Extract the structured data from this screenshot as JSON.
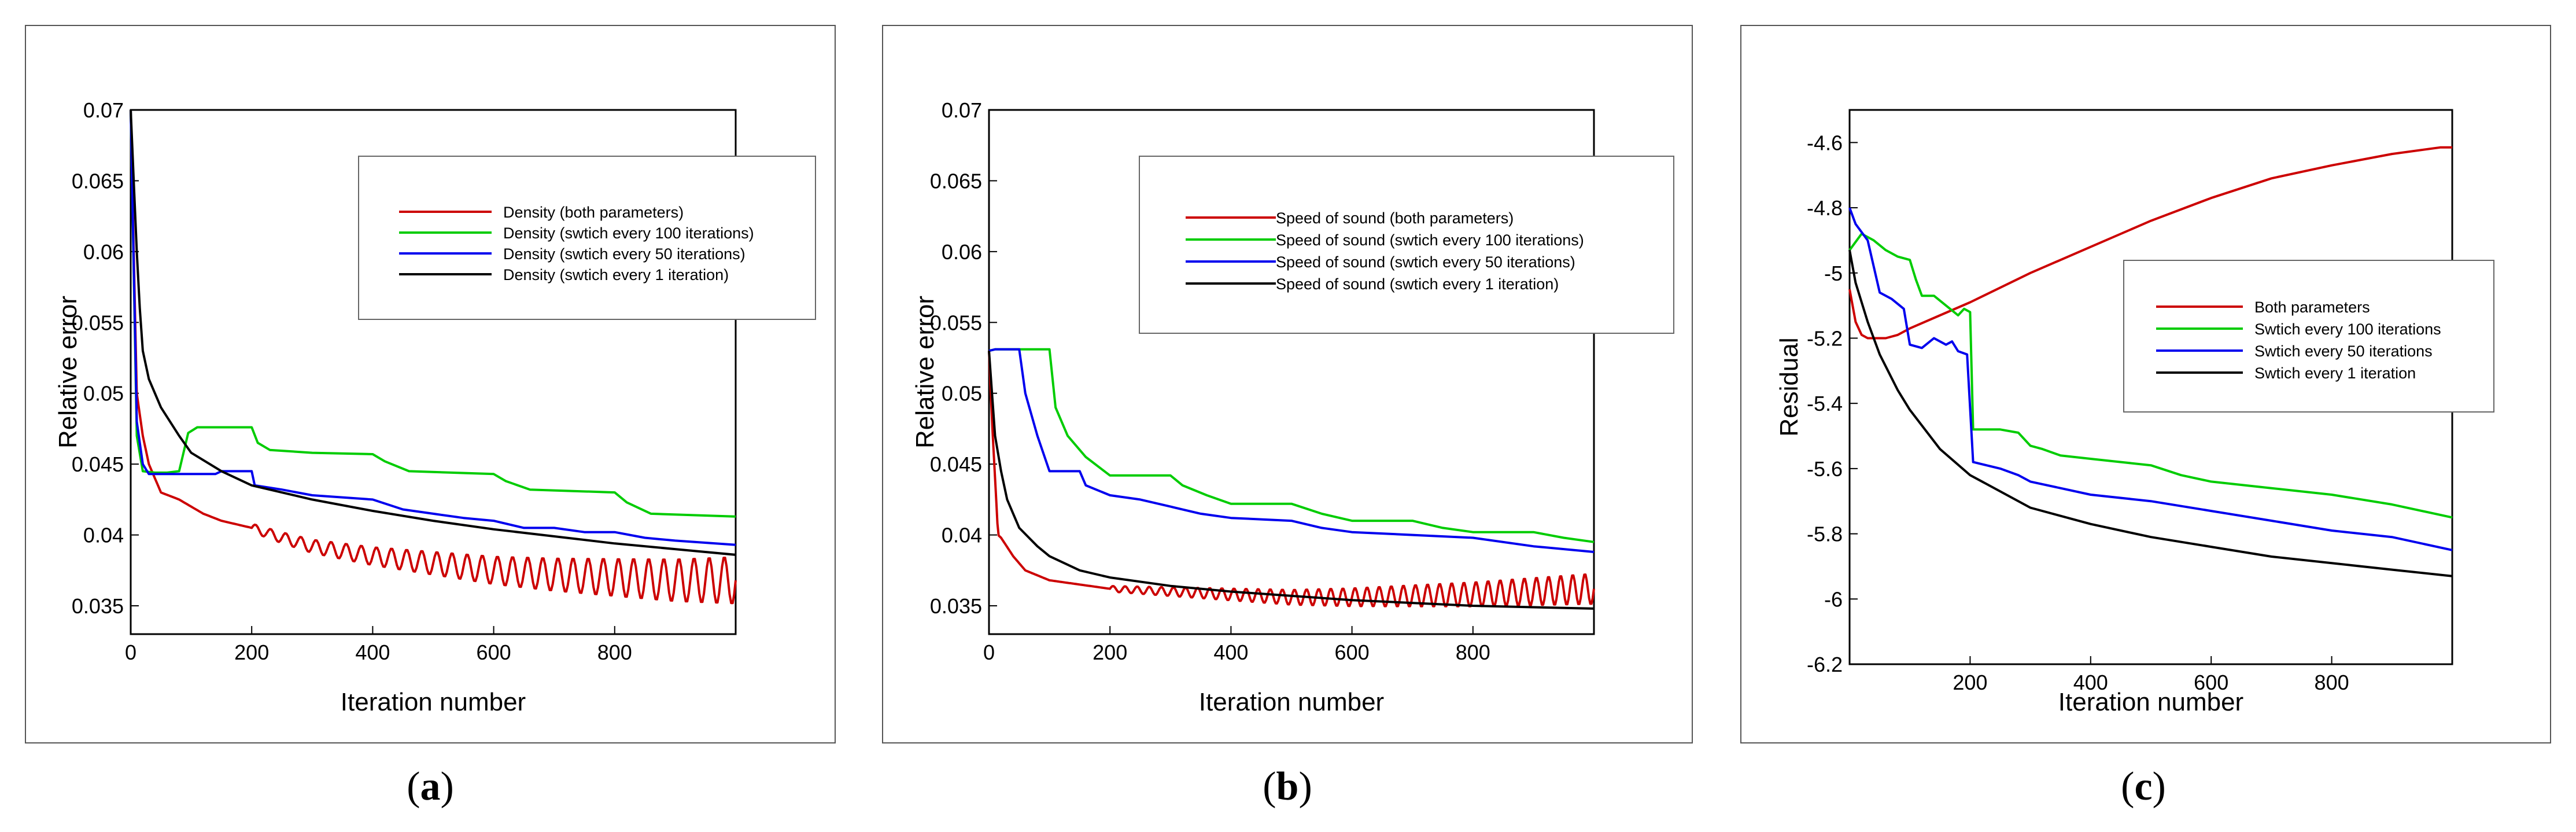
{
  "colors": {
    "red": "#cc0000",
    "green": "#00cc00",
    "blue": "#0000ee",
    "black": "#000000"
  },
  "chart_data": [
    {
      "type": "line",
      "caption": "(a)",
      "caption_letter": "a",
      "xlabel": "Iteration number",
      "ylabel": "Relative error",
      "xlim": [
        0,
        1000
      ],
      "ylim": [
        0.033,
        0.07
      ],
      "xticks": [
        0,
        200,
        400,
        600,
        800
      ],
      "xtick_labels": [
        "0",
        "200",
        "400",
        "600",
        "800"
      ],
      "yticks": [
        0.035,
        0.04,
        0.045,
        0.05,
        0.055,
        0.06,
        0.065,
        0.07
      ],
      "ytick_labels": [
        "0.035",
        "0.04",
        "0.045",
        "0.05",
        "0.055",
        "0.06",
        "0.065",
        "0.07"
      ],
      "legend_position": "top-right",
      "series": [
        {
          "name": "Density (both parameters)",
          "color": "red",
          "x": [
            0,
            5,
            10,
            20,
            30,
            50,
            80,
            120,
            150,
            200,
            250,
            300,
            400,
            500,
            600,
            700,
            800,
            900,
            1000
          ],
          "y": [
            0.07,
            0.06,
            0.05,
            0.047,
            0.045,
            0.043,
            0.0425,
            0.0415,
            0.041,
            0.0405,
            0.0398,
            0.0392,
            0.0385,
            0.038,
            0.0375,
            0.0372,
            0.037,
            0.0368,
            0.0368
          ],
          "oscillation": {
            "start": 200,
            "period": 25,
            "amp_start": 0.0003,
            "amp_end": 0.0017
          }
        },
        {
          "name": "Density (swtich every 100 iterations)",
          "color": "green",
          "x": [
            0,
            10,
            20,
            40,
            60,
            80,
            95,
            110,
            130,
            200,
            210,
            230,
            300,
            400,
            420,
            460,
            600,
            620,
            660,
            800,
            820,
            860,
            1000
          ],
          "y": [
            0.07,
            0.047,
            0.0445,
            0.0444,
            0.0444,
            0.0445,
            0.0472,
            0.0476,
            0.0476,
            0.0476,
            0.0465,
            0.046,
            0.0458,
            0.0457,
            0.0452,
            0.0445,
            0.0443,
            0.0438,
            0.0432,
            0.043,
            0.0423,
            0.0415,
            0.0413
          ]
        },
        {
          "name": "Density (swtich every 50 iterations)",
          "color": "blue",
          "x": [
            0,
            10,
            20,
            30,
            50,
            100,
            140,
            150,
            200,
            205,
            250,
            300,
            400,
            450,
            500,
            550,
            600,
            650,
            700,
            750,
            800,
            850,
            900,
            1000
          ],
          "y": [
            0.07,
            0.048,
            0.045,
            0.0443,
            0.0443,
            0.0443,
            0.0443,
            0.0445,
            0.0445,
            0.0435,
            0.0432,
            0.0428,
            0.0425,
            0.0418,
            0.0415,
            0.0412,
            0.041,
            0.0405,
            0.0405,
            0.0402,
            0.0402,
            0.0398,
            0.0396,
            0.0393
          ]
        },
        {
          "name": "Density (swtich every 1 iteration)",
          "color": "black",
          "x": [
            0,
            5,
            10,
            15,
            20,
            30,
            50,
            80,
            100,
            150,
            200,
            300,
            400,
            500,
            600,
            700,
            800,
            900,
            1000
          ],
          "y": [
            0.07,
            0.065,
            0.06,
            0.056,
            0.053,
            0.051,
            0.049,
            0.047,
            0.0458,
            0.0445,
            0.0435,
            0.0425,
            0.0417,
            0.041,
            0.0404,
            0.0399,
            0.0394,
            0.039,
            0.0386
          ]
        }
      ]
    },
    {
      "type": "line",
      "caption": "(b)",
      "caption_letter": "b",
      "xlabel": "Iteration number",
      "ylabel": "Relative error",
      "xlim": [
        0,
        1000
      ],
      "ylim": [
        0.033,
        0.07
      ],
      "xticks": [
        0,
        200,
        400,
        600,
        800
      ],
      "xtick_labels": [
        "0",
        "200",
        "400",
        "600",
        "800"
      ],
      "yticks": [
        0.035,
        0.04,
        0.045,
        0.05,
        0.055,
        0.06,
        0.065,
        0.07
      ],
      "ytick_labels": [
        "0.035",
        "0.04",
        "0.045",
        "0.05",
        "0.055",
        "0.06",
        "0.065",
        "0.07"
      ],
      "legend_position": "top-right",
      "series": [
        {
          "name": "Speed of sound (both parameters)",
          "color": "red",
          "x": [
            0,
            5,
            10,
            15,
            20,
            40,
            60,
            100,
            150,
            200,
            300,
            400,
            500,
            600,
            700,
            800,
            900,
            1000
          ],
          "y": [
            0.053,
            0.048,
            0.044,
            0.04,
            0.0398,
            0.0385,
            0.0375,
            0.0368,
            0.0365,
            0.0362,
            0.036,
            0.0358,
            0.0356,
            0.0356,
            0.0357,
            0.0358,
            0.036,
            0.0362
          ],
          "oscillation": {
            "start": 200,
            "period": 20,
            "amp_start": 0.0002,
            "amp_end": 0.0011
          }
        },
        {
          "name": "Speed of sound (swtich every 100 iterations)",
          "color": "green",
          "x": [
            0,
            10,
            100,
            110,
            130,
            160,
            200,
            300,
            320,
            360,
            400,
            500,
            550,
            600,
            700,
            750,
            800,
            900,
            950,
            1000
          ],
          "y": [
            0.053,
            0.0531,
            0.0531,
            0.049,
            0.047,
            0.0455,
            0.0442,
            0.0442,
            0.0435,
            0.0428,
            0.0422,
            0.0422,
            0.0415,
            0.041,
            0.041,
            0.0405,
            0.0402,
            0.0402,
            0.0398,
            0.0395
          ]
        },
        {
          "name": "Speed of sound (swtich every 50 iterations)",
          "color": "blue",
          "x": [
            0,
            10,
            50,
            60,
            80,
            100,
            150,
            160,
            200,
            250,
            300,
            350,
            400,
            500,
            550,
            600,
            700,
            800,
            900,
            1000
          ],
          "y": [
            0.053,
            0.0531,
            0.0531,
            0.05,
            0.047,
            0.0445,
            0.0445,
            0.0435,
            0.0428,
            0.0425,
            0.042,
            0.0415,
            0.0412,
            0.041,
            0.0405,
            0.0402,
            0.04,
            0.0398,
            0.0392,
            0.0388
          ]
        },
        {
          "name": "Speed of sound (swtich every 1 iteration)",
          "color": "black",
          "x": [
            0,
            5,
            10,
            20,
            30,
            50,
            80,
            100,
            150,
            200,
            300,
            400,
            500,
            600,
            700,
            800,
            900,
            1000
          ],
          "y": [
            0.053,
            0.05,
            0.047,
            0.0445,
            0.0425,
            0.0405,
            0.0392,
            0.0385,
            0.0375,
            0.037,
            0.0364,
            0.036,
            0.0357,
            0.0354,
            0.0352,
            0.035,
            0.0349,
            0.0348
          ]
        }
      ]
    },
    {
      "type": "line",
      "caption": "(c)",
      "caption_letter": "c",
      "xlabel": "Iteration number",
      "ylabel": "Residual",
      "xlim": [
        0,
        1000
      ],
      "ylim": [
        -6.2,
        -4.5
      ],
      "xticks": [
        200,
        400,
        600,
        800
      ],
      "xtick_labels": [
        "200",
        "400",
        "600",
        "800"
      ],
      "yticks": [
        -6.2,
        -6.0,
        -5.8,
        -5.6,
        -5.4,
        -5.2,
        -5.0,
        -4.8,
        -4.6
      ],
      "ytick_labels": [
        "-6.2",
        "-6",
        "-5.8",
        "-5.6",
        "-5.4",
        "-5.2",
        "-5",
        "-4.8",
        "-4.6"
      ],
      "legend_position": "center-right",
      "series": [
        {
          "name": "Both parameters",
          "color": "red",
          "x": [
            0,
            10,
            20,
            30,
            50,
            60,
            80,
            100,
            150,
            200,
            300,
            400,
            500,
            600,
            700,
            800,
            900,
            980,
            1000
          ],
          "y": [
            -5.05,
            -5.15,
            -5.19,
            -5.2,
            -5.2,
            -5.2,
            -5.19,
            -5.17,
            -5.13,
            -5.09,
            -5.0,
            -4.92,
            -4.84,
            -4.77,
            -4.71,
            -4.67,
            -4.635,
            -4.615,
            -4.615
          ]
        },
        {
          "name": "Swtich every 100 iterations",
          "color": "green",
          "x": [
            0,
            20,
            40,
            60,
            80,
            100,
            110,
            120,
            140,
            160,
            180,
            190,
            200,
            205,
            250,
            280,
            300,
            320,
            350,
            400,
            450,
            500,
            550,
            600,
            700,
            800,
            900,
            1000
          ],
          "y": [
            -4.93,
            -4.88,
            -4.9,
            -4.93,
            -4.95,
            -4.96,
            -5.02,
            -5.07,
            -5.07,
            -5.1,
            -5.13,
            -5.11,
            -5.12,
            -5.48,
            -5.48,
            -5.49,
            -5.53,
            -5.54,
            -5.56,
            -5.57,
            -5.58,
            -5.59,
            -5.62,
            -5.64,
            -5.66,
            -5.68,
            -5.71,
            -5.75
          ]
        },
        {
          "name": "Swtich every 50 iterations",
          "color": "blue",
          "x": [
            0,
            10,
            30,
            50,
            70,
            90,
            100,
            120,
            140,
            160,
            170,
            180,
            195,
            205,
            250,
            280,
            300,
            350,
            400,
            500,
            600,
            700,
            800,
            900,
            1000
          ],
          "y": [
            -4.8,
            -4.85,
            -4.9,
            -5.06,
            -5.08,
            -5.11,
            -5.22,
            -5.23,
            -5.2,
            -5.22,
            -5.21,
            -5.24,
            -5.25,
            -5.58,
            -5.6,
            -5.62,
            -5.64,
            -5.66,
            -5.68,
            -5.7,
            -5.73,
            -5.76,
            -5.79,
            -5.81,
            -5.85
          ]
        },
        {
          "name": "Swtich every 1 iteration",
          "color": "black",
          "x": [
            0,
            10,
            30,
            50,
            80,
            100,
            150,
            200,
            300,
            400,
            500,
            600,
            700,
            800,
            900,
            1000
          ],
          "y": [
            -4.93,
            -5.03,
            -5.15,
            -5.25,
            -5.36,
            -5.42,
            -5.54,
            -5.62,
            -5.72,
            -5.77,
            -5.81,
            -5.84,
            -5.87,
            -5.89,
            -5.91,
            -5.93
          ]
        }
      ]
    }
  ]
}
